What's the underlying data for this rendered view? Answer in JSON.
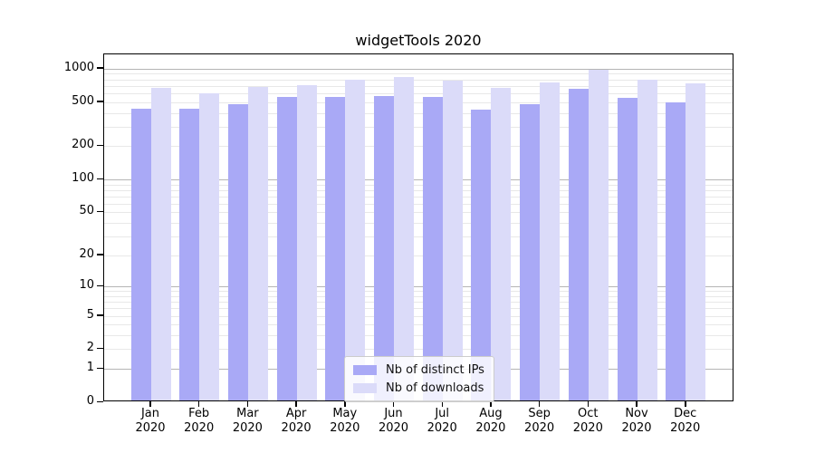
{
  "title": "widgetTools 2020",
  "colors": {
    "distinct_ips": "#a9a9f6",
    "downloads": "#dbdbf9",
    "grid_major": "#b5b5b5",
    "grid_minor": "#e8e8e8",
    "axis": "#000000",
    "legend_border": "#cccccc"
  },
  "legend": {
    "items": [
      {
        "label": "Nb of distinct IPs",
        "color_key": "distinct_ips"
      },
      {
        "label": "Nb of downloads",
        "color_key": "downloads"
      }
    ]
  },
  "chart_data": {
    "type": "bar",
    "title": "widgetTools 2020",
    "categories": [
      "Jan 2020",
      "Feb 2020",
      "Mar 2020",
      "Apr 2020",
      "May 2020",
      "Jun 2020",
      "Jul 2020",
      "Aug 2020",
      "Sep 2020",
      "Oct 2020",
      "Nov 2020",
      "Dec 2020"
    ],
    "series": [
      {
        "name": "Nb of distinct IPs",
        "color_key": "distinct_ips",
        "values": [
          420,
          420,
          465,
          535,
          535,
          550,
          540,
          415,
          460,
          630,
          525,
          475
        ]
      },
      {
        "name": "Nb of downloads",
        "color_key": "downloads",
        "values": [
          645,
          575,
          665,
          690,
          760,
          810,
          750,
          645,
          725,
          950,
          770,
          715
        ]
      }
    ],
    "y_scale": "log10(value+1)",
    "y_ticks": [
      1000,
      500,
      200,
      100,
      50,
      20,
      10,
      5,
      2,
      1,
      0
    ],
    "ylim": [
      0,
      1345
    ],
    "xlabel": "",
    "ylabel": "",
    "grid": true,
    "legend_position": "lower center"
  }
}
